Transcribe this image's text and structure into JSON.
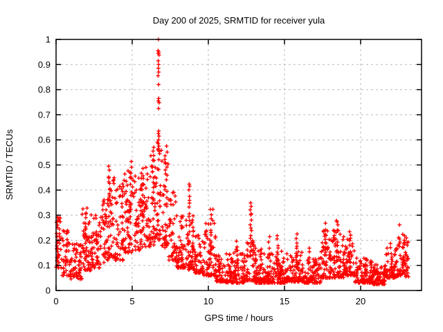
{
  "window": {
    "background": "#ffffff"
  },
  "chart_data": {
    "type": "scatter",
    "title": "Day 200 of 2025, SRMTID for receiver yula",
    "xlabel": "GPS time / hours",
    "ylabel": "SRMTID / TECUs",
    "xlim": [
      0,
      24
    ],
    "ylim": [
      0,
      1
    ],
    "xticks": [
      0,
      5,
      10,
      15,
      20
    ],
    "xtick_labels": [
      "0",
      "5",
      "10",
      "15",
      "20"
    ],
    "yticks": [
      0,
      0.1,
      0.2,
      0.3,
      0.4,
      0.5,
      0.6,
      0.7,
      0.8,
      0.9,
      1
    ],
    "ytick_labels": [
      "0",
      "0.1",
      "0.2",
      "0.3",
      "0.4",
      "0.5",
      "0.6",
      "0.7",
      "0.8",
      "0.9",
      "1"
    ],
    "grid": {
      "x_at": [
        5,
        10,
        15,
        20
      ],
      "y_at": [
        0.1,
        0.2,
        0.3,
        0.4,
        0.5,
        0.6,
        0.7,
        0.8,
        0.9
      ],
      "color": "#b9b9b9",
      "dash": "3,4"
    },
    "axis_color": "#000000",
    "marker": {
      "symbol": "plus",
      "color": "#ff0000",
      "half_size": 2.8,
      "stroke_width": 1.4
    },
    "legend": "none",
    "seed": 7,
    "series_name": "SRMTID",
    "data_summary": {
      "peak_hour": 6.7,
      "peak_value": 1.0,
      "quiet_baseline_range": [
        0.03,
        0.13
      ],
      "active_period_hours": [
        0,
        10.5
      ],
      "data_end_hour": 23.15
    },
    "baseline_segments": [
      [
        0.0,
        0.4,
        34,
        0.09,
        0.3,
        1.6
      ],
      [
        0.4,
        0.9,
        40,
        0.06,
        0.24,
        2.0
      ],
      [
        0.9,
        1.7,
        62,
        0.045,
        0.19,
        2.0
      ],
      [
        1.7,
        2.3,
        50,
        0.08,
        0.33,
        1.8
      ],
      [
        2.3,
        2.9,
        50,
        0.09,
        0.31,
        1.7
      ],
      [
        2.9,
        3.4,
        42,
        0.11,
        0.38,
        1.7
      ],
      [
        3.4,
        3.9,
        42,
        0.13,
        0.47,
        1.9
      ],
      [
        3.9,
        4.5,
        50,
        0.12,
        0.44,
        1.8
      ],
      [
        4.5,
        5.1,
        52,
        0.15,
        0.48,
        1.7
      ],
      [
        5.1,
        5.7,
        52,
        0.16,
        0.46,
        1.7
      ],
      [
        5.7,
        6.2,
        44,
        0.17,
        0.5,
        1.7
      ],
      [
        6.2,
        6.6,
        36,
        0.18,
        0.57,
        1.6
      ],
      [
        6.6,
        6.95,
        30,
        0.2,
        0.6,
        1.5
      ],
      [
        6.95,
        7.4,
        40,
        0.17,
        0.55,
        1.8
      ],
      [
        7.4,
        7.9,
        44,
        0.12,
        0.4,
        1.9
      ],
      [
        7.9,
        8.5,
        52,
        0.09,
        0.3,
        2.0
      ],
      [
        8.5,
        9.1,
        52,
        0.08,
        0.28,
        2.0
      ],
      [
        9.1,
        9.7,
        50,
        0.07,
        0.22,
        2.0
      ],
      [
        9.7,
        10.5,
        68,
        0.06,
        0.27,
        2.2
      ],
      [
        10.5,
        11.1,
        52,
        0.035,
        0.14,
        1.8
      ],
      [
        11.1,
        12.5,
        116,
        0.03,
        0.16,
        2.3
      ],
      [
        12.5,
        13.1,
        50,
        0.04,
        0.2,
        2.3
      ],
      [
        13.1,
        14.3,
        100,
        0.03,
        0.16,
        2.4
      ],
      [
        14.3,
        15.3,
        84,
        0.03,
        0.16,
        2.3
      ],
      [
        15.3,
        16.3,
        84,
        0.035,
        0.17,
        2.3
      ],
      [
        16.3,
        17.4,
        92,
        0.03,
        0.14,
        2.2
      ],
      [
        17.4,
        18.2,
        66,
        0.05,
        0.24,
        2.2
      ],
      [
        18.2,
        18.9,
        58,
        0.05,
        0.25,
        2.2
      ],
      [
        18.9,
        19.6,
        58,
        0.06,
        0.22,
        2.2
      ],
      [
        19.6,
        20.7,
        92,
        0.03,
        0.13,
        2.0
      ],
      [
        20.7,
        21.6,
        76,
        0.025,
        0.12,
        1.9
      ],
      [
        21.6,
        22.4,
        66,
        0.05,
        0.18,
        1.9
      ],
      [
        22.4,
        23.15,
        62,
        0.055,
        0.22,
        1.7
      ]
    ],
    "spike_columns": [
      [
        0.06,
        0.12,
        0.29,
        10,
        0.05
      ],
      [
        1.98,
        0.12,
        0.325,
        12,
        0.06
      ],
      [
        3.52,
        0.3,
        0.49,
        12,
        0.08
      ],
      [
        4.35,
        0.25,
        0.43,
        8,
        0.05
      ],
      [
        4.92,
        0.3,
        0.52,
        10,
        0.05
      ],
      [
        5.65,
        0.3,
        0.48,
        10,
        0.07
      ],
      [
        6.35,
        0.35,
        0.575,
        12,
        0.07
      ],
      [
        7.22,
        0.42,
        0.57,
        10,
        0.08
      ],
      [
        8.75,
        0.24,
        0.43,
        12,
        0.03
      ],
      [
        8.98,
        0.15,
        0.3,
        8,
        0.04
      ],
      [
        10.2,
        0.15,
        0.33,
        14,
        0.1
      ],
      [
        11.85,
        0.1,
        0.195,
        6,
        0.06
      ],
      [
        12.8,
        0.14,
        0.35,
        16,
        0.06
      ],
      [
        13.45,
        0.1,
        0.17,
        5,
        0.05
      ],
      [
        14.0,
        0.1,
        0.21,
        6,
        0.05
      ],
      [
        14.55,
        0.1,
        0.215,
        8,
        0.04
      ],
      [
        15.8,
        0.1,
        0.225,
        8,
        0.04
      ],
      [
        16.6,
        0.08,
        0.17,
        5,
        0.04
      ],
      [
        17.75,
        0.12,
        0.265,
        10,
        0.08
      ],
      [
        18.45,
        0.12,
        0.285,
        12,
        0.07
      ],
      [
        19.3,
        0.1,
        0.24,
        8,
        0.06
      ],
      [
        22.0,
        0.08,
        0.19,
        6,
        0.05
      ],
      [
        22.55,
        0.2,
        0.26,
        2,
        0.02
      ],
      [
        22.85,
        0.1,
        0.225,
        8,
        0.1
      ]
    ],
    "peak_points": [
      [
        6.72,
        1.0
      ],
      [
        6.7,
        0.955
      ],
      [
        6.74,
        0.95
      ],
      [
        6.72,
        0.944
      ],
      [
        6.76,
        0.938
      ],
      [
        6.71,
        0.915
      ],
      [
        6.73,
        0.9
      ],
      [
        6.72,
        0.885
      ],
      [
        6.74,
        0.87
      ],
      [
        6.7,
        0.855
      ],
      [
        6.73,
        0.82
      ],
      [
        6.74,
        0.765
      ],
      [
        6.71,
        0.755
      ],
      [
        6.77,
        0.748
      ],
      [
        6.73,
        0.725
      ],
      [
        6.74,
        0.635
      ],
      [
        6.72,
        0.625
      ],
      [
        6.76,
        0.615
      ],
      [
        6.73,
        0.6
      ],
      [
        6.71,
        0.585
      ],
      [
        6.75,
        0.575
      ],
      [
        6.72,
        0.565
      ],
      [
        6.77,
        0.555
      ],
      [
        6.68,
        0.56
      ],
      [
        6.8,
        0.545
      ]
    ]
  }
}
